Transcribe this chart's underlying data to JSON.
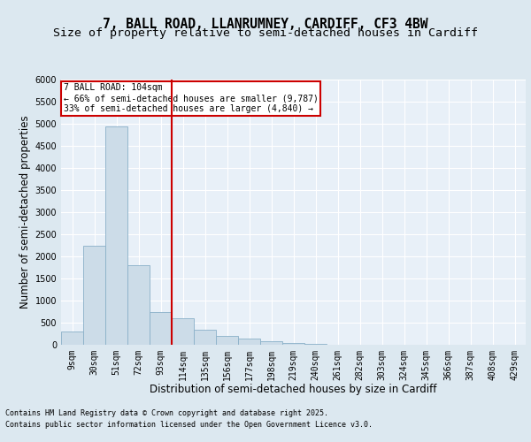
{
  "title_line1": "7, BALL ROAD, LLANRUMNEY, CARDIFF, CF3 4BW",
  "title_line2": "Size of property relative to semi-detached houses in Cardiff",
  "xlabel": "Distribution of semi-detached houses by size in Cardiff",
  "ylabel": "Number of semi-detached properties",
  "footer_line1": "Contains HM Land Registry data © Crown copyright and database right 2025.",
  "footer_line2": "Contains public sector information licensed under the Open Government Licence v3.0.",
  "bar_labels": [
    "9sqm",
    "30sqm",
    "51sqm",
    "72sqm",
    "93sqm",
    "114sqm",
    "135sqm",
    "156sqm",
    "177sqm",
    "198sqm",
    "219sqm",
    "240sqm",
    "261sqm",
    "282sqm",
    "303sqm",
    "324sqm",
    "345sqm",
    "366sqm",
    "387sqm",
    "408sqm",
    "429sqm"
  ],
  "bar_values": [
    300,
    2250,
    4950,
    1800,
    750,
    600,
    350,
    200,
    150,
    75,
    50,
    20,
    10,
    5,
    3,
    2,
    1,
    0,
    0,
    0,
    0
  ],
  "bar_color": "#ccdce8",
  "bar_edge_color": "#8ab0c8",
  "vline_color": "#cc0000",
  "annotation_title": "7 BALL ROAD: 104sqm",
  "annotation_line1": "← 66% of semi-detached houses are smaller (9,787)",
  "annotation_line2": "33% of semi-detached houses are larger (4,840) →",
  "annotation_box_color": "#cc0000",
  "ylim": [
    0,
    6000
  ],
  "yticks": [
    0,
    500,
    1000,
    1500,
    2000,
    2500,
    3000,
    3500,
    4000,
    4500,
    5000,
    5500,
    6000
  ],
  "bg_color": "#dce8f0",
  "plot_bg_color": "#e8f0f8",
  "grid_color": "#ffffff",
  "title_fontsize": 10.5,
  "subtitle_fontsize": 9.5,
  "tick_fontsize": 7,
  "label_fontsize": 8.5,
  "footer_fontsize": 6
}
